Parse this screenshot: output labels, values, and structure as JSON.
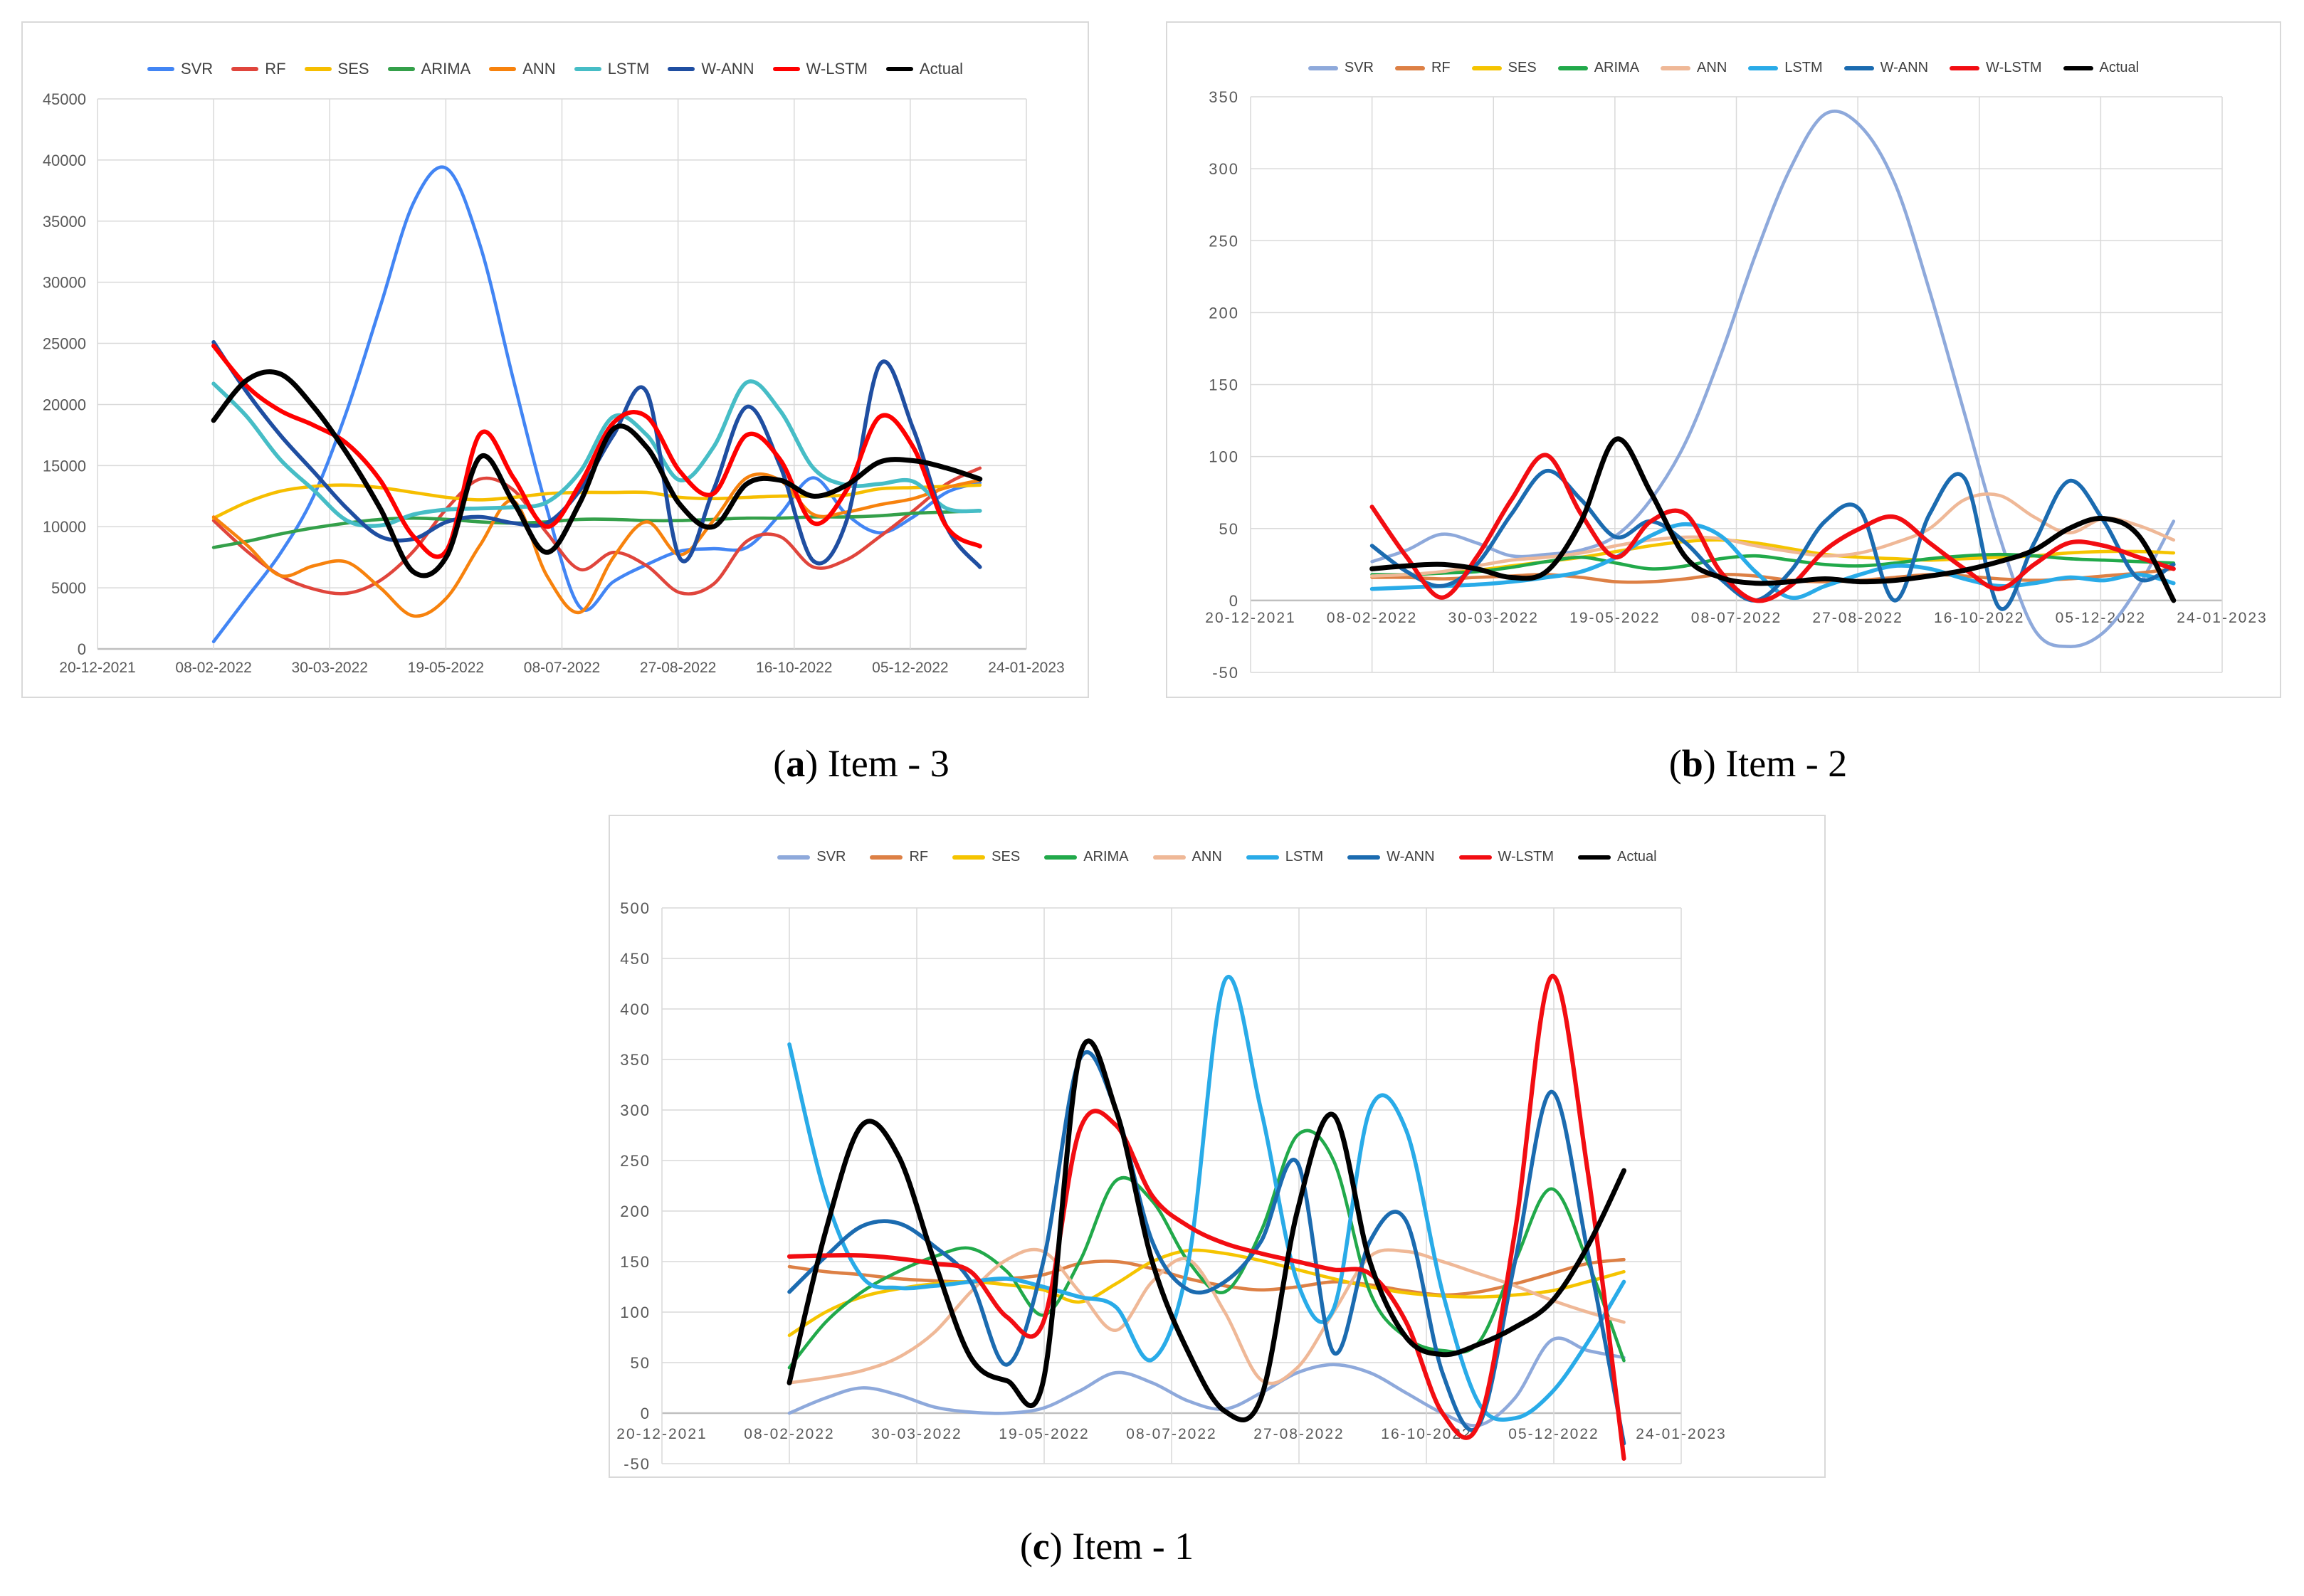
{
  "colors": {
    "gridline": "#d9d9d9",
    "axis_line": "#bfbfbf",
    "tick_label": "#595959",
    "legend_label": "#404040"
  },
  "chart_data": [
    {
      "id": "a",
      "type": "line",
      "caption": {
        "open": "(",
        "letter": "a",
        "rest": ") Item - 3"
      },
      "x_tick_labels": [
        "20-12-2021",
        "08-02-2022",
        "30-03-2022",
        "19-05-2022",
        "08-07-2022",
        "27-08-2022",
        "16-10-2022",
        "05-12-2022",
        "24-01-2023"
      ],
      "y_tick_values": [
        0,
        5000,
        10000,
        15000,
        20000,
        25000,
        30000,
        35000,
        40000,
        45000
      ],
      "ylim": [
        0,
        45000
      ],
      "data_span_ticks": [
        1.0,
        7.6
      ],
      "grid": true,
      "legend_position": "top",
      "x_note": "24 evenly spaced weekly samples from 08-02-2022 to early Jan 2023 (estimated from plot)",
      "series": [
        {
          "name": "SVR",
          "color": "#4285f4",
          "values": [
            600,
            4200,
            7800,
            12500,
            19500,
            28000,
            36500,
            39300,
            33000,
            22000,
            11500,
            3400,
            5500,
            6900,
            8000,
            8200,
            8300,
            11000,
            14000,
            11000,
            9500,
            10800,
            12800,
            13600
          ]
        },
        {
          "name": "RF",
          "color": "#e0453c",
          "values": [
            10500,
            8000,
            6000,
            4900,
            4550,
            5600,
            8000,
            11500,
            13900,
            13000,
            9500,
            6500,
            7900,
            6800,
            4600,
            5300,
            8800,
            9200,
            6700,
            7300,
            9200,
            11300,
            13500,
            14800
          ]
        },
        {
          "name": "SES",
          "color": "#f6be00",
          "values": [
            10700,
            12000,
            12900,
            13300,
            13400,
            13200,
            12800,
            12400,
            12200,
            12400,
            12700,
            12800,
            12800,
            12800,
            12400,
            12300,
            12400,
            12500,
            12500,
            12600,
            13100,
            13200,
            13300,
            13400
          ]
        },
        {
          "name": "ARIMA",
          "color": "#34a04a",
          "values": [
            8300,
            8800,
            9400,
            9900,
            10300,
            10600,
            10700,
            10600,
            10400,
            10300,
            10400,
            10600,
            10600,
            10500,
            10500,
            10600,
            10700,
            10700,
            10800,
            10800,
            10900,
            11100,
            11200,
            11300
          ]
        },
        {
          "name": "ANN",
          "color": "#f7820d",
          "values": [
            10800,
            8500,
            6000,
            6800,
            7100,
            5000,
            2700,
            4200,
            8500,
            12100,
            6000,
            3000,
            7500,
            10400,
            7700,
            10500,
            14000,
            13800,
            11000,
            11200,
            11800,
            12300,
            13200,
            13800
          ]
        },
        {
          "name": "LSTM",
          "color": "#46bdc6",
          "values": [
            21700,
            19000,
            15500,
            13000,
            10500,
            10100,
            11000,
            11400,
            11500,
            11600,
            12000,
            14500,
            19000,
            17500,
            13800,
            16500,
            21800,
            19500,
            14800,
            13400,
            13500,
            13700,
            11500,
            11300
          ]
        },
        {
          "name": "W-ANN",
          "color": "#1f4ea1",
          "values": [
            25100,
            21000,
            17500,
            14500,
            11500,
            9200,
            9000,
            10400,
            10800,
            10300,
            10300,
            13000,
            17500,
            21000,
            7400,
            13000,
            19800,
            15000,
            7200,
            10500,
            23300,
            18000,
            10000,
            6700
          ]
        },
        {
          "name": "W-LSTM",
          "color": "#ff0000",
          "values": [
            24800,
            21500,
            19500,
            18300,
            16800,
            13800,
            9200,
            8100,
            17600,
            14000,
            10000,
            13500,
            18500,
            19000,
            14500,
            12700,
            17500,
            15500,
            10300,
            13000,
            19000,
            16500,
            10000,
            8400
          ]
        },
        {
          "name": "Actual",
          "color": "#000000",
          "values": [
            18700,
            22000,
            22500,
            19800,
            16000,
            11500,
            6300,
            7600,
            15700,
            12000,
            7900,
            12000,
            18000,
            16500,
            11800,
            10000,
            13500,
            13800,
            12500,
            13400,
            15300,
            15400,
            14800,
            13900
          ]
        }
      ]
    },
    {
      "id": "b",
      "type": "line",
      "caption": {
        "open": "(",
        "letter": "b",
        "rest": ") Item - 2"
      },
      "x_tick_labels": [
        "20-12-2021",
        "08-02-2022",
        "30-03-2022",
        "19-05-2022",
        "08-07-2022",
        "27-08-2022",
        "16-10-2022",
        "05-12-2022",
        "24-01-2023"
      ],
      "y_tick_values": [
        -50,
        0,
        50,
        100,
        150,
        200,
        250,
        300,
        350
      ],
      "ylim": [
        -50,
        350
      ],
      "data_span_ticks": [
        1.0,
        7.6
      ],
      "grid": true,
      "legend_position": "top",
      "x_note": "24 evenly spaced weekly samples from 08-02-2022 to early Jan 2023 (estimated from plot)",
      "series": [
        {
          "name": "SVR",
          "color": "#8ea9db",
          "values": [
            27,
            35,
            46,
            40,
            31,
            32,
            35,
            45,
            70,
            110,
            170,
            240,
            300,
            338,
            330,
            290,
            215,
            130,
            45,
            -20,
            -32,
            -22,
            10,
            55
          ]
        },
        {
          "name": "RF",
          "color": "#dd8045",
          "values": [
            16,
            16,
            15,
            16,
            17,
            18,
            16,
            13,
            13,
            15,
            18,
            17,
            14,
            13,
            14,
            16,
            18,
            17,
            15,
            14,
            15,
            17,
            19,
            22
          ]
        },
        {
          "name": "SES",
          "color": "#f5c400",
          "values": [
            17,
            18,
            19,
            21,
            24,
            27,
            30,
            34,
            38,
            41,
            42,
            40,
            36,
            32,
            30,
            29,
            28,
            29,
            30,
            31,
            33,
            34,
            34,
            33
          ]
        },
        {
          "name": "ARIMA",
          "color": "#21a94a",
          "values": [
            18,
            18,
            19,
            20,
            23,
            27,
            30,
            26,
            22,
            24,
            29,
            31,
            28,
            25,
            24,
            26,
            29,
            31,
            32,
            31,
            29,
            28,
            27,
            26
          ]
        },
        {
          "name": "ANN",
          "color": "#efb897",
          "values": [
            17,
            18,
            20,
            24,
            28,
            30,
            33,
            38,
            42,
            44,
            43,
            38,
            34,
            31,
            33,
            40,
            50,
            70,
            73,
            58,
            47,
            57,
            52,
            42
          ]
        },
        {
          "name": "LSTM",
          "color": "#29abe8",
          "values": [
            8,
            9,
            10,
            11,
            13,
            16,
            20,
            30,
            45,
            53,
            45,
            20,
            2,
            10,
            18,
            24,
            22,
            15,
            10,
            12,
            16,
            14,
            18,
            12
          ]
        },
        {
          "name": "W-ANN",
          "color": "#1b6bb0",
          "values": [
            38,
            20,
            10,
            25,
            60,
            90,
            70,
            44,
            55,
            40,
            15,
            0,
            20,
            55,
            63,
            0,
            60,
            85,
            -5,
            40,
            83,
            55,
            15,
            25
          ]
        },
        {
          "name": "W-LSTM",
          "color": "#f20d12",
          "values": [
            65,
            30,
            2,
            30,
            70,
            101,
            60,
            30,
            55,
            60,
            20,
            0,
            10,
            35,
            50,
            58,
            40,
            22,
            8,
            25,
            40,
            38,
            30,
            22
          ]
        },
        {
          "name": "Actual",
          "color": "#000000",
          "values": [
            22,
            24,
            25,
            22,
            16,
            20,
            55,
            112,
            75,
            30,
            16,
            12,
            13,
            15,
            13,
            14,
            17,
            21,
            27,
            35,
            50,
            57,
            45,
            0
          ]
        }
      ]
    },
    {
      "id": "c",
      "type": "line",
      "caption": {
        "open": "(",
        "letter": "c",
        "rest": ") Item - 1"
      },
      "x_tick_labels": [
        "20-12-2021",
        "08-02-2022",
        "30-03-2022",
        "19-05-2022",
        "08-07-2022",
        "27-08-2022",
        "16-10-2022",
        "05-12-2022",
        "24-01-2023"
      ],
      "y_tick_values": [
        -50,
        0,
        50,
        100,
        150,
        200,
        250,
        300,
        350,
        400,
        450,
        500
      ],
      "ylim": [
        -50,
        500
      ],
      "data_span_ticks": [
        1.0,
        7.55
      ],
      "grid": true,
      "legend_position": "top",
      "x_note": "24 evenly spaced weekly samples from 08-02-2022 to early Jan 2023 (estimated from plot)",
      "series": [
        {
          "name": "SVR",
          "color": "#8ea9db",
          "values": [
            0,
            15,
            25,
            18,
            6,
            1,
            0,
            5,
            22,
            40,
            30,
            12,
            4,
            20,
            40,
            48,
            40,
            20,
            0,
            -12,
            15,
            72,
            62,
            55
          ]
        },
        {
          "name": "RF",
          "color": "#dd8045",
          "values": [
            145,
            140,
            137,
            133,
            131,
            130,
            133,
            137,
            148,
            150,
            143,
            133,
            126,
            122,
            125,
            130,
            127,
            121,
            117,
            120,
            128,
            138,
            148,
            152
          ]
        },
        {
          "name": "SES",
          "color": "#f5c400",
          "values": [
            77,
            100,
            115,
            123,
            128,
            130,
            127,
            122,
            110,
            128,
            150,
            161,
            158,
            151,
            142,
            133,
            125,
            119,
            116,
            115,
            117,
            121,
            130,
            140
          ]
        },
        {
          "name": "ARIMA",
          "color": "#21a94a",
          "values": [
            45,
            90,
            120,
            140,
            155,
            163,
            140,
            97,
            150,
            230,
            210,
            150,
            120,
            180,
            275,
            250,
            120,
            75,
            62,
            70,
            150,
            222,
            150,
            52
          ]
        },
        {
          "name": "ANN",
          "color": "#efb897",
          "values": [
            30,
            35,
            42,
            55,
            80,
            120,
            152,
            160,
            120,
            82,
            130,
            152,
            100,
            33,
            45,
            100,
            155,
            160,
            150,
            138,
            126,
            112,
            100,
            90
          ]
        },
        {
          "name": "LSTM",
          "color": "#29abe8",
          "values": [
            365,
            215,
            135,
            124,
            126,
            130,
            133,
            125,
            115,
            105,
            53,
            150,
            428,
            300,
            130,
            103,
            300,
            280,
            120,
            10,
            -5,
            20,
            70,
            130
          ]
        },
        {
          "name": "W-ANN",
          "color": "#1b6bb0",
          "values": [
            120,
            155,
            185,
            188,
            165,
            130,
            48,
            150,
            350,
            300,
            170,
            122,
            130,
            170,
            248,
            60,
            170,
            190,
            40,
            -12,
            150,
            318,
            160,
            -30
          ]
        },
        {
          "name": "W-LSTM",
          "color": "#f20d12",
          "values": [
            155,
            156,
            156,
            153,
            148,
            140,
            95,
            90,
            280,
            285,
            215,
            185,
            168,
            158,
            150,
            142,
            138,
            90,
            0,
            -10,
            180,
            432,
            240,
            -45
          ]
        },
        {
          "name": "Actual",
          "color": "#000000",
          "values": [
            30,
            180,
            285,
            255,
            150,
            55,
            32,
            32,
            353,
            300,
            150,
            60,
            2,
            15,
            200,
            295,
            150,
            75,
            58,
            68,
            85,
            110,
            165,
            240
          ]
        }
      ]
    }
  ]
}
